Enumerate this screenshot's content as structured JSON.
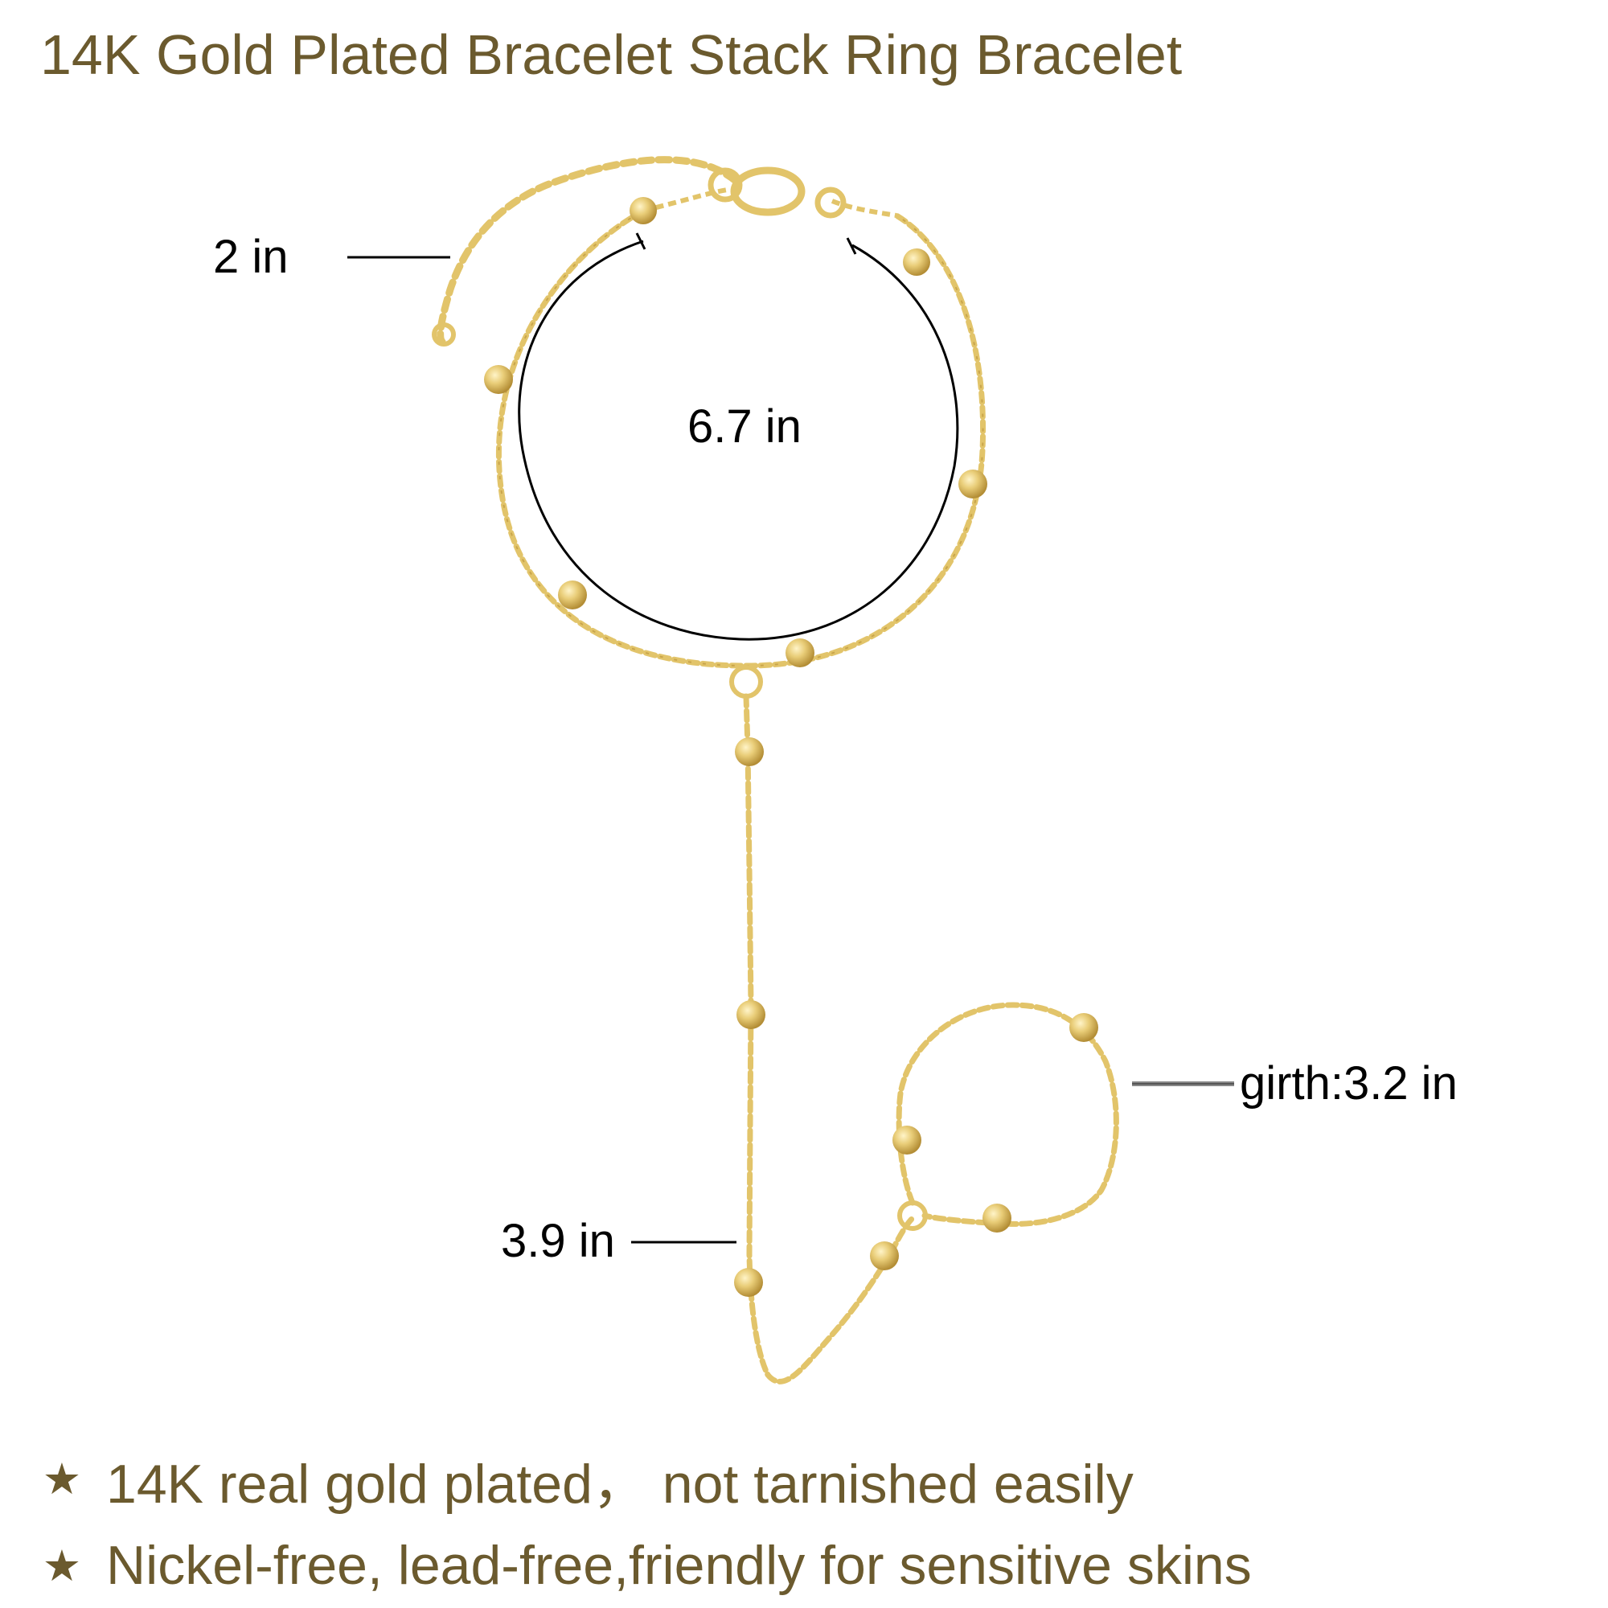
{
  "title": "14K Gold Plated Bracelet Stack Ring Bracelet",
  "measurements": {
    "extender": "2 in",
    "bracelet": "6.7 in",
    "drop": "3.9 in",
    "ring_girth": "girth:3.2 in"
  },
  "features": [
    {
      "icon": "star-icon",
      "text": "14K real gold plated，  not tarnished easily"
    },
    {
      "icon": "star-icon",
      "text": "Nickel-free, lead-free,friendly for sensitive skins"
    }
  ],
  "colors": {
    "gold": "#e2c46a",
    "gold_dark": "#b8963a",
    "text_brown": "#6b5a2e"
  }
}
